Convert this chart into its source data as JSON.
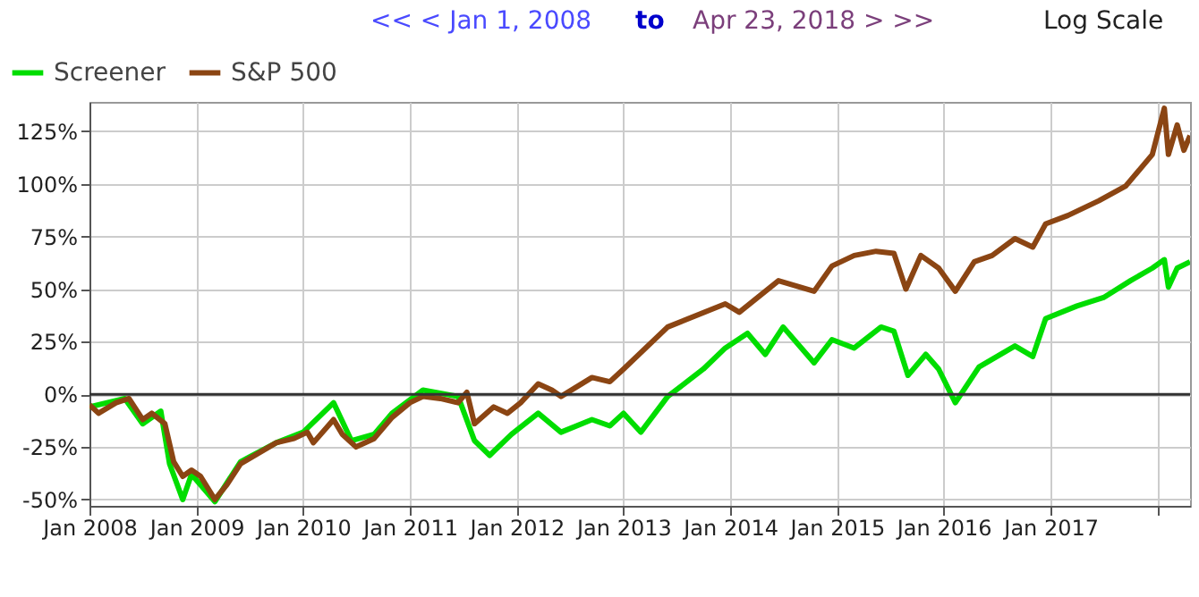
{
  "chart_data": {
    "type": "line",
    "annotations": [
      "<< < Jan 1, 2008",
      "to",
      "Apr 23, 2018 > >>",
      "Log Scale"
    ],
    "xlim": [
      "2008-01-01",
      "2018-04-23"
    ],
    "xticks": [
      {
        "value": "2008-01-01",
        "label": "Jan 2008"
      },
      {
        "value": "2009-01-01",
        "label": "Jan 2009"
      },
      {
        "value": "2010-01-01",
        "label": "Jan 2010"
      },
      {
        "value": "2011-01-01",
        "label": "Jan 2011"
      },
      {
        "value": "2012-01-01",
        "label": "Jan 2012"
      },
      {
        "value": "2013-01-01",
        "label": "Jan 2013"
      },
      {
        "value": "2014-01-01",
        "label": "Jan 2014"
      },
      {
        "value": "2015-01-01",
        "label": "Jan 2015"
      },
      {
        "value": "2016-01-01",
        "label": "Jan 2016"
      },
      {
        "value": "2017-01-01",
        "label": "Jan 2017"
      },
      {
        "value": "2018-01-01",
        "label": null
      }
    ],
    "ylim": [
      -53,
      139
    ],
    "yticks": [
      {
        "value": -50,
        "label": "-50%"
      },
      {
        "value": -25,
        "label": "-25%"
      },
      {
        "value": 0,
        "label": "0%"
      },
      {
        "value": 25,
        "label": "25%"
      },
      {
        "value": 50,
        "label": "50%"
      },
      {
        "value": 75,
        "label": "75%"
      },
      {
        "value": 100,
        "label": "100%"
      },
      {
        "value": 125,
        "label": "125%"
      }
    ],
    "grid": true,
    "legend": "top left",
    "line_style": "solid",
    "marker": "none",
    "ref_lines": [
      {
        "axis": "y",
        "value": 0,
        "color": "#333333"
      }
    ],
    "series": [
      {
        "name": "Screener",
        "color": "#00dd00",
        "x": [
          "2008-01-01",
          "2008-05-01",
          "2008-07-01",
          "2008-09-01",
          "2008-10-01",
          "2008-11-15",
          "2008-12-15",
          "2009-03-05",
          "2009-06-01",
          "2009-10-01",
          "2010-01-01",
          "2010-04-15",
          "2010-06-15",
          "2010-09-01",
          "2010-11-01",
          "2011-02-15",
          "2011-06-15",
          "2011-08-10",
          "2011-10-01",
          "2011-12-15",
          "2012-03-15",
          "2012-06-01",
          "2012-09-15",
          "2012-11-15",
          "2013-01-01",
          "2013-03-01",
          "2013-06-01",
          "2013-10-01",
          "2013-12-15",
          "2014-03-01",
          "2014-05-01",
          "2014-07-01",
          "2014-10-15",
          "2014-12-15",
          "2015-03-01",
          "2015-06-01",
          "2015-07-15",
          "2015-09-01",
          "2015-11-01",
          "2015-12-15",
          "2016-02-10",
          "2016-05-01",
          "2016-09-01",
          "2016-11-01",
          "2016-12-15",
          "2017-04-01",
          "2017-07-01",
          "2017-10-01",
          "2017-12-15",
          "2018-01-25",
          "2018-02-08",
          "2018-03-10",
          "2018-04-23"
        ],
        "values": [
          -6,
          -2,
          -14,
          -8,
          -33,
          -50,
          -38,
          -51,
          -32,
          -23,
          -18,
          -4,
          -22,
          -19,
          -9,
          2,
          -1,
          -22,
          -29,
          -19,
          -9,
          -18,
          -12,
          -15,
          -9,
          -18,
          -1,
          12,
          22,
          29,
          19,
          32,
          15,
          26,
          22,
          32,
          30,
          9,
          19,
          12,
          -4,
          13,
          23,
          18,
          36,
          42,
          46,
          54,
          60,
          64,
          51,
          60,
          63
        ]
      },
      {
        "name": "S&P 500",
        "color": "#8b4513",
        "x": [
          "2008-01-01",
          "2008-02-01",
          "2008-04-01",
          "2008-05-15",
          "2008-07-01",
          "2008-08-01",
          "2008-09-15",
          "2008-10-15",
          "2008-11-15",
          "2008-12-15",
          "2009-01-15",
          "2009-03-05",
          "2009-04-15",
          "2009-06-01",
          "2009-08-01",
          "2009-10-01",
          "2009-12-01",
          "2010-01-15",
          "2010-02-05",
          "2010-04-15",
          "2010-05-15",
          "2010-07-01",
          "2010-09-01",
          "2010-11-01",
          "2011-01-01",
          "2011-02-15",
          "2011-04-15",
          "2011-06-15",
          "2011-07-15",
          "2011-08-10",
          "2011-10-15",
          "2011-12-01",
          "2012-01-15",
          "2012-03-15",
          "2012-05-01",
          "2012-06-01",
          "2012-09-15",
          "2012-11-15",
          "2013-01-01",
          "2013-06-01",
          "2013-12-15",
          "2014-02-01",
          "2014-06-15",
          "2014-10-15",
          "2014-12-15",
          "2015-03-01",
          "2015-05-15",
          "2015-07-15",
          "2015-08-25",
          "2015-10-15",
          "2015-12-15",
          "2016-02-10",
          "2016-04-15",
          "2016-06-15",
          "2016-09-01",
          "2016-11-01",
          "2016-12-15",
          "2017-03-01",
          "2017-06-15",
          "2017-09-15",
          "2017-12-15",
          "2018-01-25",
          "2018-02-08",
          "2018-03-10",
          "2018-04-02",
          "2018-04-23"
        ],
        "values": [
          -5,
          -9,
          -4,
          -2,
          -12,
          -9,
          -14,
          -32,
          -39,
          -36,
          -39,
          -50,
          -43,
          -33,
          -28,
          -23,
          -21,
          -18,
          -23,
          -12,
          -19,
          -25,
          -21,
          -11,
          -4,
          -1,
          -2,
          -4,
          1,
          -14,
          -6,
          -9,
          -4,
          5,
          2,
          -1,
          8,
          6,
          12,
          32,
          43,
          39,
          54,
          49,
          61,
          66,
          68,
          67,
          50,
          66,
          60,
          49,
          63,
          66,
          74,
          70,
          81,
          85,
          92,
          99,
          114,
          136,
          114,
          128,
          116,
          123
        ]
      }
    ]
  }
}
